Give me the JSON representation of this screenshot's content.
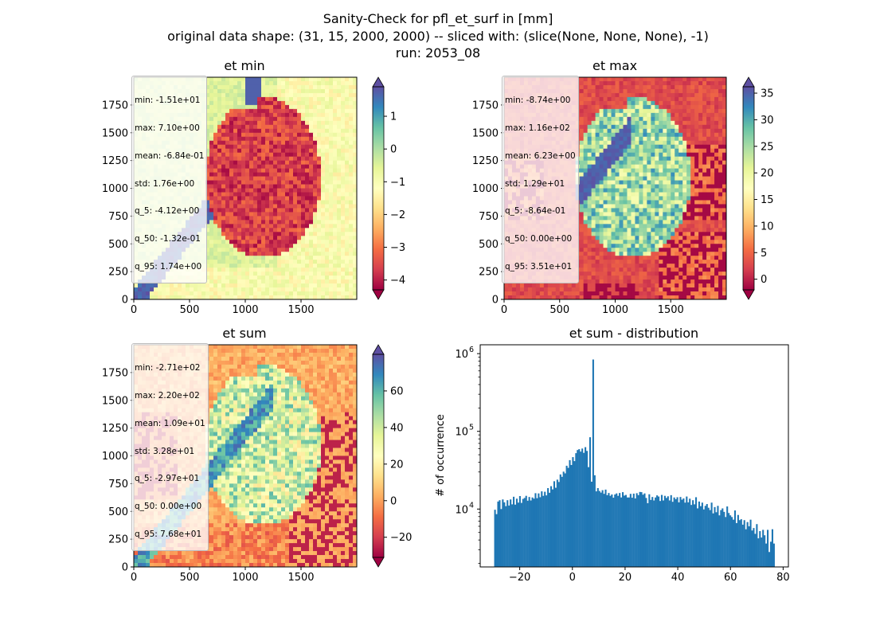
{
  "figure": {
    "title_lines": [
      "Sanity-Check for pfl_et_surf in [mm]",
      "original data shape: (31, 15, 2000, 2000) -- sliced with: (slice(None, None, None), -1)",
      "run: 2053_08"
    ]
  },
  "colormap": {
    "name": "Spectral",
    "stops": [
      "#9e0142",
      "#d53e4f",
      "#f46d43",
      "#fdae61",
      "#fee08b",
      "#ffffbf",
      "#e6f598",
      "#abdda4",
      "#66c2a5",
      "#3288bd",
      "#5e4fa2"
    ]
  },
  "chart_data": [
    {
      "type": "heatmap",
      "title": "et min",
      "xlim": [
        0,
        2000
      ],
      "ylim": [
        0,
        2000
      ],
      "x_ticks": [
        "0",
        "500",
        "1000",
        "1500"
      ],
      "y_ticks": [
        "0",
        "250",
        "500",
        "750",
        "1000",
        "1250",
        "1500",
        "1750"
      ],
      "color_range": [
        -4.3,
        1.9
      ],
      "colorbar_ticks": [
        "1",
        "0",
        "−1",
        "−2",
        "−3",
        "−4"
      ],
      "colorbar_tick_values": [
        1,
        0,
        -1,
        -2,
        -3,
        -4
      ],
      "colorbar_extend": "both",
      "stats": [
        "min: -1.51e+01",
        "max: 7.10e+00",
        "mean: -6.84e-01",
        "std: 1.76e+00",
        "q_5: -4.12e+00",
        "q_50: -1.32e-01",
        "q_95: 1.74e+00"
      ]
    },
    {
      "type": "heatmap",
      "title": "et max",
      "xlim": [
        0,
        2000
      ],
      "ylim": [
        0,
        2000
      ],
      "x_ticks": [
        "0",
        "500",
        "1000",
        "1500"
      ],
      "y_ticks": [
        "0",
        "250",
        "500",
        "750",
        "1000",
        "1250",
        "1500",
        "1750"
      ],
      "color_range": [
        -2.0,
        36.2
      ],
      "colorbar_ticks": [
        "35",
        "30",
        "25",
        "20",
        "15",
        "10",
        "5",
        "0"
      ],
      "colorbar_tick_values": [
        35,
        30,
        25,
        20,
        15,
        10,
        5,
        0
      ],
      "colorbar_extend": "both",
      "stats": [
        "min: -8.74e+00",
        "max: 1.16e+02",
        "mean: 6.23e+00",
        "std: 1.29e+01",
        "q_5: -8.64e-01",
        "q_50: 0.00e+00",
        "q_95: 3.51e+01"
      ]
    },
    {
      "type": "heatmap",
      "title": "et sum",
      "xlim": [
        0,
        2000
      ],
      "ylim": [
        0,
        2000
      ],
      "x_ticks": [
        "0",
        "500",
        "1000",
        "1500"
      ],
      "y_ticks": [
        "0",
        "250",
        "500",
        "750",
        "1000",
        "1250",
        "1500",
        "1750"
      ],
      "color_range": [
        -31,
        80
      ],
      "colorbar_ticks": [
        "60",
        "40",
        "20",
        "0",
        "−20"
      ],
      "colorbar_tick_values": [
        60,
        40,
        20,
        0,
        -20
      ],
      "colorbar_extend": "both",
      "stats": [
        "min: -2.71e+02",
        "max: 2.20e+02",
        "mean: 1.09e+01",
        "std: 3.28e+01",
        "q_5: -2.97e+01",
        "q_50: 0.00e+00",
        "q_95: 7.68e+01"
      ]
    },
    {
      "type": "bar",
      "title": "et sum - distribution",
      "ylabel": "# of occurrence",
      "y_scale": "log",
      "xlim": [
        -35,
        82
      ],
      "ylim": [
        1800,
        1300000
      ],
      "x_ticks": [
        "−20",
        "0",
        "20",
        "40",
        "60",
        "80"
      ],
      "x_tick_values": [
        -20,
        0,
        20,
        40,
        60,
        80
      ],
      "y_ticks": [
        "10",
        "10",
        "10"
      ],
      "y_tick_exponents": [
        "4",
        "5",
        "6"
      ],
      "y_tick_values": [
        10000,
        100000,
        1000000
      ],
      "bar_color": "#1f77b4",
      "bins": {
        "x_start": -29.7,
        "x_end": 76.8,
        "count": 180
      },
      "values_note": "",
      "values": [
        9800,
        8600,
        12500,
        13000,
        10000,
        13300,
        12200,
        10900,
        13000,
        11100,
        13300,
        11500,
        14400,
        11400,
        13600,
        12100,
        14700,
        12000,
        13500,
        13900,
        14800,
        12800,
        14300,
        12900,
        14100,
        13600,
        16000,
        13800,
        15900,
        14200,
        16900,
        14800,
        16700,
        15000,
        18600,
        16200,
        19700,
        17900,
        22800,
        18800,
        23900,
        22300,
        27900,
        26000,
        30300,
        28800,
        36100,
        33900,
        42600,
        36900,
        46600,
        41400,
        52400,
        57500,
        59000,
        54900,
        60100,
        52900,
        62600,
        56000,
        34600,
        84000,
        22500,
        840000,
        27200,
        16900,
        18600,
        17100,
        16300,
        17500,
        15700,
        17800,
        15100,
        16100,
        14800,
        15400,
        14000,
        15400,
        15900,
        14800,
        16100,
        14100,
        16500,
        14900,
        15200,
        14100,
        14100,
        15700,
        14000,
        15800,
        13700,
        16000,
        15100,
        16600,
        16500,
        15300,
        15900,
        13900,
        11900,
        15500,
        13100,
        14300,
        12900,
        14100,
        15000,
        14500,
        12700,
        15200,
        12900,
        14800,
        13900,
        14600,
        12900,
        15100,
        12400,
        14100,
        13400,
        14200,
        12200,
        14300,
        13200,
        13700,
        12100,
        14500,
        12200,
        13600,
        11300,
        13000,
        11500,
        14200,
        10200,
        12500,
        10900,
        12100,
        9900,
        11000,
        11600,
        10400,
        9700,
        12100,
        8800,
        10600,
        9100,
        11000,
        8300,
        9700,
        10200,
        9200,
        7900,
        10800,
        8900,
        8300,
        7900,
        7300,
        9600,
        6600,
        8400,
        7200,
        7400,
        6300,
        7200,
        5500,
        6800,
        6000,
        7300,
        5300,
        5700,
        4800,
        6400,
        4200,
        5200,
        4300,
        5400,
        4600,
        3600,
        5400,
        2800,
        3800,
        5500,
        3600
      ]
    }
  ]
}
